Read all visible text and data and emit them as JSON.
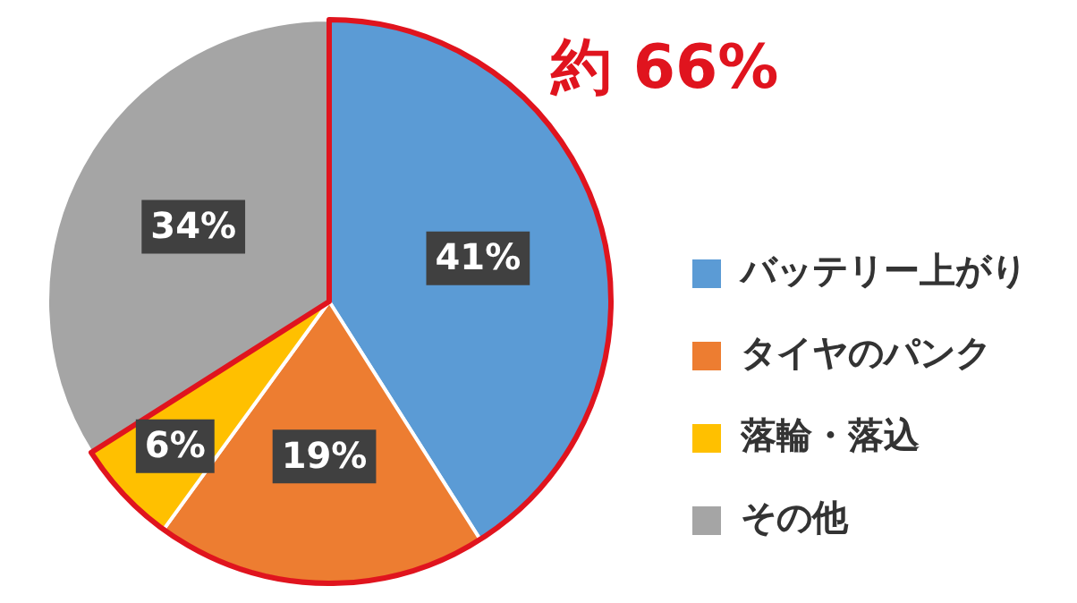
{
  "chart_data": {
    "type": "pie",
    "categories": [
      "バッテリー上がり",
      "タイヤのパンク",
      "落輪・落込",
      "その他"
    ],
    "values": [
      41,
      19,
      6,
      34
    ],
    "colors": [
      "#5b9bd5",
      "#ed7d31",
      "#ffc000",
      "#a5a5a5"
    ],
    "value_labels": [
      "41%",
      "19%",
      "6%",
      "34%"
    ],
    "annotations": [
      "約 66%"
    ],
    "legend": "right"
  }
}
